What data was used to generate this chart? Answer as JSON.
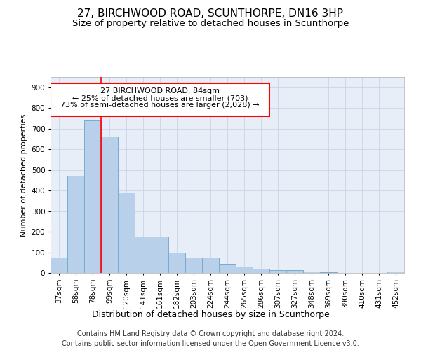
{
  "title": "27, BIRCHWOOD ROAD, SCUNTHORPE, DN16 3HP",
  "subtitle": "Size of property relative to detached houses in Scunthorpe",
  "xlabel": "Distribution of detached houses by size in Scunthorpe",
  "ylabel": "Number of detached properties",
  "categories": [
    "37sqm",
    "58sqm",
    "78sqm",
    "99sqm",
    "120sqm",
    "141sqm",
    "161sqm",
    "182sqm",
    "203sqm",
    "224sqm",
    "244sqm",
    "265sqm",
    "286sqm",
    "307sqm",
    "327sqm",
    "348sqm",
    "369sqm",
    "390sqm",
    "410sqm",
    "431sqm",
    "452sqm"
  ],
  "values": [
    75,
    470,
    740,
    660,
    390,
    175,
    175,
    97,
    75,
    75,
    45,
    30,
    22,
    12,
    12,
    8,
    4,
    0,
    0,
    0,
    8
  ],
  "bar_color": "#b8d0ea",
  "bar_edge_color": "#7aaad0",
  "red_line_x": 2.5,
  "annotation_line1": "27 BIRCHWOOD ROAD: 84sqm",
  "annotation_line2": "← 25% of detached houses are smaller (703)",
  "annotation_line3": "73% of semi-detached houses are larger (2,028) →",
  "annotation_box_color": "white",
  "annotation_box_edge": "red",
  "ylim": [
    0,
    950
  ],
  "yticks": [
    0,
    100,
    200,
    300,
    400,
    500,
    600,
    700,
    800,
    900
  ],
  "grid_color": "#c8d4e8",
  "bg_color": "#e8eef8",
  "footer_line1": "Contains HM Land Registry data © Crown copyright and database right 2024.",
  "footer_line2": "Contains public sector information licensed under the Open Government Licence v3.0.",
  "title_fontsize": 11,
  "subtitle_fontsize": 9.5,
  "xlabel_fontsize": 9,
  "ylabel_fontsize": 8,
  "tick_fontsize": 7.5,
  "footer_fontsize": 7,
  "ann_fontsize": 8
}
